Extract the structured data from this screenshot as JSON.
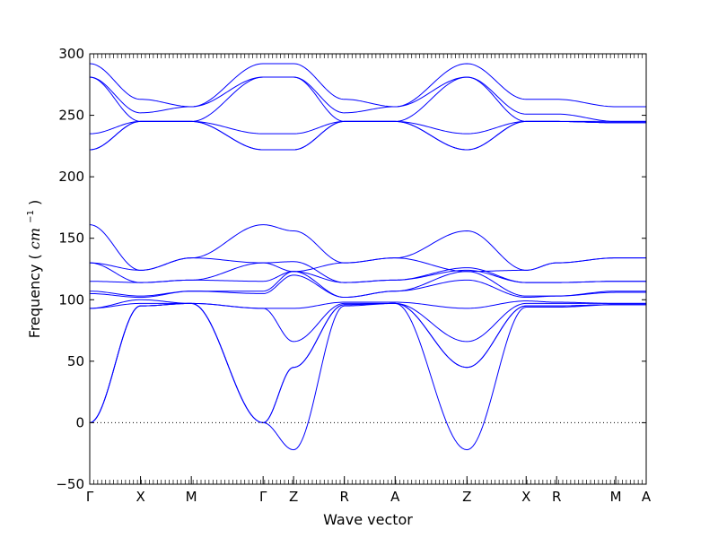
{
  "chart_data": {
    "type": "line",
    "title": "",
    "xlabel": "Wave vector",
    "ylabel": "Frequency",
    "ylabel_unit": "cm",
    "ylabel_unit_exp": "−1",
    "ylim": [
      -50,
      300
    ],
    "y_ticks": [
      -50,
      0,
      50,
      100,
      150,
      200,
      250,
      300
    ],
    "x_ticks": [
      {
        "label": "Γ",
        "x": 0
      },
      {
        "label": "X",
        "x": 0.5
      },
      {
        "label": "M",
        "x": 1.0
      },
      {
        "label": "Γ",
        "x": 1.707
      },
      {
        "label": "Z",
        "x": 2.007
      },
      {
        "label": "R",
        "x": 2.507
      },
      {
        "label": "A",
        "x": 3.007
      },
      {
        "label": "Z",
        "x": 3.714
      },
      {
        "label": "X",
        "x": 4.297
      },
      {
        "label": "R",
        "x": 4.597
      },
      {
        "label": "M",
        "x": 5.179
      },
      {
        "label": "A",
        "x": 5.479
      }
    ],
    "zero_line": true,
    "line_color": "#0000ff",
    "bands": [
      [
        [
          0,
          292
        ],
        [
          0.5,
          263
        ],
        [
          1.0,
          257
        ],
        [
          1.707,
          292
        ],
        [
          2.007,
          292
        ],
        [
          2.507,
          263
        ],
        [
          3.007,
          257
        ],
        [
          3.714,
          292
        ],
        [
          4.297,
          263
        ],
        [
          4.597,
          263
        ],
        [
          5.179,
          257
        ],
        [
          5.479,
          257
        ]
      ],
      [
        [
          0,
          281
        ],
        [
          0.5,
          252
        ],
        [
          1.0,
          257
        ],
        [
          1.707,
          281
        ],
        [
          2.007,
          281
        ],
        [
          2.507,
          252
        ],
        [
          3.007,
          257
        ],
        [
          3.714,
          281
        ],
        [
          4.297,
          251
        ],
        [
          4.597,
          251
        ],
        [
          5.179,
          245
        ],
        [
          5.479,
          245
        ]
      ],
      [
        [
          0,
          281
        ],
        [
          0.5,
          245
        ],
        [
          1.0,
          245
        ],
        [
          1.707,
          281
        ],
        [
          2.007,
          281
        ],
        [
          2.507,
          245
        ],
        [
          3.007,
          245
        ],
        [
          3.714,
          281
        ],
        [
          4.297,
          245
        ],
        [
          4.597,
          245
        ],
        [
          5.179,
          245
        ],
        [
          5.479,
          245
        ]
      ],
      [
        [
          0,
          235
        ],
        [
          0.5,
          245
        ],
        [
          1.0,
          245
        ],
        [
          1.707,
          235
        ],
        [
          2.007,
          235
        ],
        [
          2.507,
          245
        ],
        [
          3.007,
          245
        ],
        [
          3.714,
          235
        ],
        [
          4.297,
          245
        ],
        [
          4.597,
          245
        ],
        [
          5.179,
          244
        ],
        [
          5.479,
          244
        ]
      ],
      [
        [
          0,
          222
        ],
        [
          0.5,
          245
        ],
        [
          1.0,
          245
        ],
        [
          1.707,
          222
        ],
        [
          2.007,
          222
        ],
        [
          2.507,
          245
        ],
        [
          3.007,
          245
        ],
        [
          3.714,
          222
        ],
        [
          4.297,
          245
        ],
        [
          4.597,
          245
        ],
        [
          5.179,
          244
        ],
        [
          5.479,
          244
        ]
      ],
      [
        [
          0,
          222
        ],
        [
          0.5,
          245
        ],
        [
          1.0,
          245
        ],
        [
          1.707,
          222
        ],
        [
          2.007,
          222
        ],
        [
          2.507,
          245
        ],
        [
          3.007,
          245
        ],
        [
          3.714,
          222
        ],
        [
          4.297,
          245
        ],
        [
          4.597,
          245
        ],
        [
          5.179,
          244
        ],
        [
          5.479,
          244
        ]
      ],
      [
        [
          0,
          161
        ],
        [
          0.5,
          124
        ],
        [
          1.0,
          134
        ],
        [
          1.707,
          161
        ],
        [
          2.007,
          156
        ],
        [
          2.507,
          130
        ],
        [
          3.007,
          134
        ],
        [
          3.714,
          156
        ],
        [
          4.297,
          124
        ],
        [
          4.597,
          130
        ],
        [
          5.179,
          134
        ],
        [
          5.479,
          134
        ]
      ],
      [
        [
          0,
          130
        ],
        [
          0.5,
          124
        ],
        [
          1.0,
          134
        ],
        [
          1.707,
          130
        ],
        [
          2.007,
          123
        ],
        [
          2.507,
          130
        ],
        [
          3.007,
          134
        ],
        [
          3.714,
          123
        ],
        [
          4.297,
          124
        ],
        [
          4.597,
          130
        ],
        [
          5.179,
          134
        ],
        [
          5.479,
          134
        ]
      ],
      [
        [
          0,
          130
        ],
        [
          0.5,
          114
        ],
        [
          1.0,
          116
        ],
        [
          1.707,
          130
        ],
        [
          2.007,
          131
        ],
        [
          2.507,
          114
        ],
        [
          3.007,
          116
        ],
        [
          3.714,
          124
        ],
        [
          4.297,
          114
        ],
        [
          4.597,
          114
        ],
        [
          5.179,
          115
        ],
        [
          5.479,
          115
        ]
      ],
      [
        [
          0,
          115
        ],
        [
          0.5,
          114
        ],
        [
          1.0,
          116
        ],
        [
          1.707,
          115
        ],
        [
          2.007,
          123
        ],
        [
          2.507,
          114
        ],
        [
          3.007,
          116
        ],
        [
          3.714,
          126
        ],
        [
          4.297,
          114
        ],
        [
          4.597,
          114
        ],
        [
          5.179,
          115
        ],
        [
          5.479,
          115
        ]
      ],
      [
        [
          0,
          107
        ],
        [
          0.5,
          103
        ],
        [
          1.0,
          107
        ],
        [
          1.707,
          107
        ],
        [
          2.007,
          123
        ],
        [
          2.507,
          102
        ],
        [
          3.007,
          107
        ],
        [
          3.714,
          123
        ],
        [
          4.297,
          103
        ],
        [
          4.597,
          103
        ],
        [
          5.179,
          107
        ],
        [
          5.479,
          107
        ]
      ],
      [
        [
          0,
          105
        ],
        [
          0.5,
          102
        ],
        [
          1.0,
          107
        ],
        [
          1.707,
          105
        ],
        [
          2.007,
          120
        ],
        [
          2.507,
          102
        ],
        [
          3.007,
          107
        ],
        [
          3.714,
          116
        ],
        [
          4.297,
          102
        ],
        [
          4.597,
          103
        ],
        [
          5.179,
          106
        ],
        [
          5.479,
          106
        ]
      ],
      [
        [
          0,
          93
        ],
        [
          0.5,
          100
        ],
        [
          1.0,
          97
        ],
        [
          1.707,
          93
        ],
        [
          2.007,
          93
        ],
        [
          2.507,
          98
        ],
        [
          3.007,
          98
        ],
        [
          3.714,
          93
        ],
        [
          4.297,
          99
        ],
        [
          4.597,
          98
        ],
        [
          5.179,
          97
        ],
        [
          5.479,
          97
        ]
      ],
      [
        [
          0,
          93
        ],
        [
          0.5,
          97
        ],
        [
          1.0,
          97
        ],
        [
          1.707,
          93
        ],
        [
          2.007,
          66
        ],
        [
          2.507,
          97
        ],
        [
          3.007,
          97
        ],
        [
          3.714,
          66
        ],
        [
          4.297,
          97
        ],
        [
          4.597,
          97
        ],
        [
          5.179,
          97
        ],
        [
          5.479,
          97
        ]
      ],
      [
        [
          0,
          0
        ],
        [
          0.5,
          95
        ],
        [
          1.0,
          97
        ],
        [
          1.707,
          0
        ],
        [
          2.007,
          45
        ],
        [
          2.507,
          96
        ],
        [
          3.007,
          97
        ],
        [
          3.714,
          45
        ],
        [
          4.297,
          95
        ],
        [
          4.597,
          95
        ],
        [
          5.179,
          96
        ],
        [
          5.479,
          96
        ]
      ],
      [
        [
          0,
          0
        ],
        [
          0.5,
          95
        ],
        [
          1.0,
          97
        ],
        [
          1.707,
          0
        ],
        [
          2.007,
          45
        ],
        [
          2.507,
          96
        ],
        [
          3.007,
          97
        ],
        [
          3.714,
          45
        ],
        [
          4.297,
          95
        ],
        [
          4.597,
          95
        ],
        [
          5.179,
          96
        ],
        [
          5.479,
          96
        ]
      ],
      [
        [
          0,
          0
        ],
        [
          0.5,
          95
        ],
        [
          1.0,
          97
        ],
        [
          1.707,
          0
        ],
        [
          2.007,
          -22
        ],
        [
          2.507,
          95
        ],
        [
          3.007,
          97
        ],
        [
          3.714,
          -22
        ],
        [
          4.297,
          94
        ],
        [
          4.597,
          94
        ],
        [
          5.179,
          96
        ],
        [
          5.479,
          96
        ]
      ]
    ]
  }
}
